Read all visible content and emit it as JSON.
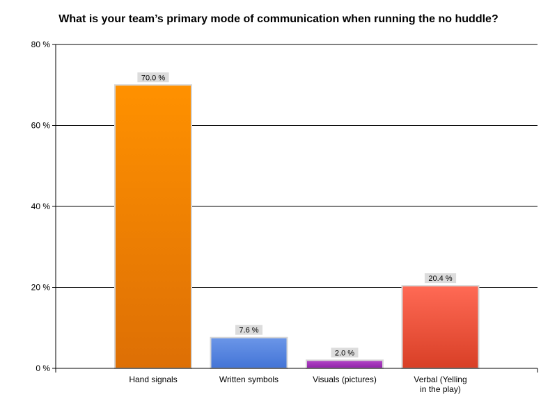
{
  "chart_data": {
    "type": "bar",
    "title": "What is your team’s primary mode of communication when running the no huddle?",
    "xlabel": "",
    "ylabel": "",
    "categories": [
      "Hand signals",
      "Written symbols",
      "Visuals (pictures)",
      "Verbal (Yelling in the play)"
    ],
    "category_label_lines": [
      [
        "Hand signals"
      ],
      [
        "Written symbols"
      ],
      [
        "Visuals (pictures)"
      ],
      [
        "Verbal (Yelling",
        "in the play)"
      ]
    ],
    "values": [
      70.0,
      7.6,
      2.0,
      20.4
    ],
    "data_labels": [
      "70.0 %",
      "7.6 %",
      "2.0 %",
      "20.4 %"
    ],
    "ylim": [
      0,
      80
    ],
    "yticks": [
      0,
      20,
      40,
      60,
      80
    ],
    "ytick_labels": [
      "0 %",
      "20 %",
      "40 %",
      "60 %",
      "80 %"
    ],
    "grid": true,
    "legend": "none",
    "bar_colors": [
      {
        "top": "#ff9100",
        "bottom": "#dd6f05"
      },
      {
        "top": "#6b96e8",
        "bottom": "#4374d6"
      },
      {
        "top": "#b447c8",
        "bottom": "#8e22a8"
      },
      {
        "top": "#ff6a55",
        "bottom": "#d83f26"
      }
    ],
    "label_background": "#dcdcdc"
  }
}
